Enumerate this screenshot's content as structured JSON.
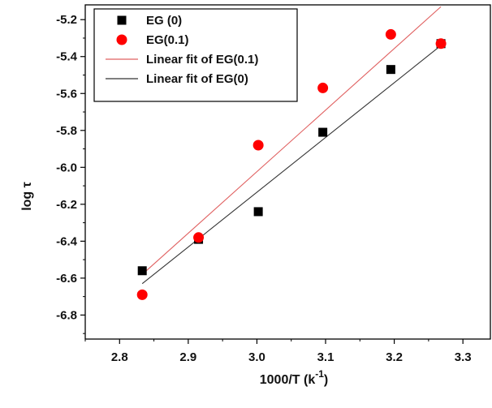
{
  "chart_data": {
    "type": "scatter",
    "xlabel": "1000/T (k",
    "xlabel_sup": "-1",
    "xlabel_close": ")",
    "ylabel": "log τ",
    "xlim": [
      2.75,
      3.34
    ],
    "ylim": [
      -6.93,
      -5.12
    ],
    "x_ticks": [
      2.8,
      2.9,
      3.0,
      3.1,
      3.2,
      3.3
    ],
    "x_tick_labels": [
      "2.8",
      "2.9",
      "3.0",
      "3.1",
      "3.2",
      "3.3"
    ],
    "y_ticks": [
      -6.8,
      -6.6,
      -6.4,
      -6.2,
      -6.0,
      -5.8,
      -5.6,
      -5.4,
      -5.2
    ],
    "y_tick_labels": [
      "-6.8",
      "-6.6",
      "-6.4",
      "-6.2",
      "-6.0",
      "-5.8",
      "-5.6",
      "-5.4",
      "-5.2"
    ],
    "grid": false,
    "legend_position": "top-left",
    "series": [
      {
        "name": "EG (0)",
        "kind": "points",
        "marker": "square",
        "color": "#000000",
        "x": [
          2.833,
          2.915,
          3.002,
          3.096,
          3.195,
          3.268
        ],
        "y": [
          -6.56,
          -6.39,
          -6.24,
          -5.81,
          -5.47,
          -5.33
        ]
      },
      {
        "name": "EG(0.1)",
        "kind": "points",
        "marker": "circle",
        "color": "#ff0000",
        "x": [
          2.833,
          2.915,
          3.002,
          3.096,
          3.195,
          3.268
        ],
        "y": [
          -6.69,
          -6.38,
          -5.88,
          -5.57,
          -5.28,
          -5.33
        ]
      },
      {
        "name": "Linear fit of EG(0.1)",
        "kind": "line",
        "color": "#e06060",
        "x": [
          2.833,
          3.268
        ],
        "y": [
          -6.58,
          -5.13
        ]
      },
      {
        "name": "Linear fit of EG(0)",
        "kind": "line",
        "color": "#333333",
        "x": [
          2.833,
          3.268
        ],
        "y": [
          -6.63,
          -5.34
        ]
      }
    ]
  }
}
